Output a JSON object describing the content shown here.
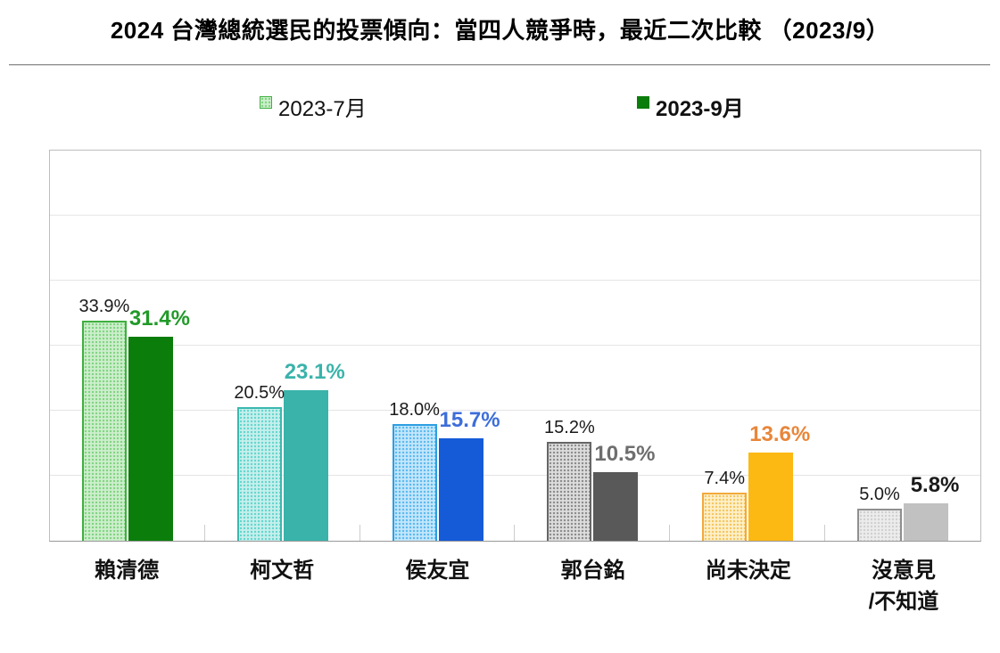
{
  "title": "2024 台灣總統選民的投票傾向：當四人競爭時，最近二次比較 （2023/9）",
  "legend": {
    "items": [
      {
        "label": "2023-7月",
        "bold": false,
        "swatch_bg": "#cdeecd",
        "swatch_dot": "#7fd47f",
        "swatch_border": "#3faf3f"
      },
      {
        "label": "2023-9月",
        "bold": true,
        "swatch_fill": "#0b7d0b"
      }
    ]
  },
  "chart_data": {
    "type": "bar",
    "title": "2024 台灣總統選民的投票傾向：當四人競爭時，最近二次比較 （2023/9）",
    "categories": [
      "賴清德",
      "柯文哲",
      "侯友宜",
      "郭台銘",
      "尚未決定",
      "沒意見/不知道"
    ],
    "series": [
      {
        "name": "2023-7月",
        "values": [
          33.9,
          20.5,
          18.0,
          15.2,
          7.4,
          5.0
        ]
      },
      {
        "name": "2023-9月",
        "values": [
          31.4,
          23.1,
          15.7,
          10.5,
          13.6,
          5.8
        ]
      }
    ],
    "xlabel": "",
    "ylabel": "",
    "ylim": [
      0,
      60
    ],
    "gridline_step": 10,
    "grid": true,
    "legend_position": "top",
    "y_tick_labels_shown": false
  },
  "groups": [
    {
      "category_lines": [
        "賴清德"
      ],
      "july": {
        "label": "33.9%",
        "value": 33.9
      },
      "sept": {
        "label": "31.4%",
        "value": 31.4
      },
      "colors": {
        "july_bg": "#cdeecd",
        "july_dot": "#7fd47f",
        "july_border": "#3faf3f",
        "sept_fill": "#0b7d0b",
        "sept_label": "#219a28"
      }
    },
    {
      "category_lines": [
        "柯文哲"
      ],
      "july": {
        "label": "20.5%",
        "value": 20.5
      },
      "sept": {
        "label": "23.1%",
        "value": 23.1
      },
      "colors": {
        "july_bg": "#c6efec",
        "july_dot": "#62d5cc",
        "july_border": "#3bb8ae",
        "sept_fill": "#3ab3aa",
        "sept_label": "#3ab3aa"
      }
    },
    {
      "category_lines": [
        "侯友宜"
      ],
      "july": {
        "label": "18.0%",
        "value": 18.0
      },
      "sept": {
        "label": "15.7%",
        "value": 15.7
      },
      "colors": {
        "july_bg": "#c3e6fb",
        "july_dot": "#58b9f0",
        "july_border": "#2d9fe3",
        "sept_fill": "#155bd8",
        "sept_label": "#3d6ed9"
      }
    },
    {
      "category_lines": [
        "郭台銘"
      ],
      "july": {
        "label": "15.2%",
        "value": 15.2
      },
      "sept": {
        "label": "10.5%",
        "value": 10.5
      },
      "colors": {
        "july_bg": "#dcdcdc",
        "july_dot": "#8a8a8a",
        "july_border": "#666666",
        "sept_fill": "#595959",
        "sept_label": "#6e6e6e"
      }
    },
    {
      "category_lines": [
        "尚未決定"
      ],
      "july": {
        "label": "7.4%",
        "value": 7.4
      },
      "sept": {
        "label": "13.6%",
        "value": 13.6
      },
      "colors": {
        "july_bg": "#fdf0c8",
        "july_dot": "#f6c45c",
        "july_border": "#f2a93b",
        "sept_fill": "#fcb813",
        "sept_label": "#e8863a"
      }
    },
    {
      "category_lines": [
        "沒意見",
        "/不知道"
      ],
      "july": {
        "label": "5.0%",
        "value": 5.0
      },
      "sept": {
        "label": "5.8%",
        "value": 5.8
      },
      "colors": {
        "july_bg": "#ececec",
        "july_dot": "#cfcfcf",
        "july_border": "#8f8f8f",
        "sept_fill": "#c1c1c1",
        "sept_label": "#1a1a1a"
      }
    }
  ],
  "plot_style": {
    "gridline_color": "#e5e5e5",
    "border_color": "#bdbdbd",
    "baseline_color": "#999999",
    "tick_color": "#cccccc"
  }
}
